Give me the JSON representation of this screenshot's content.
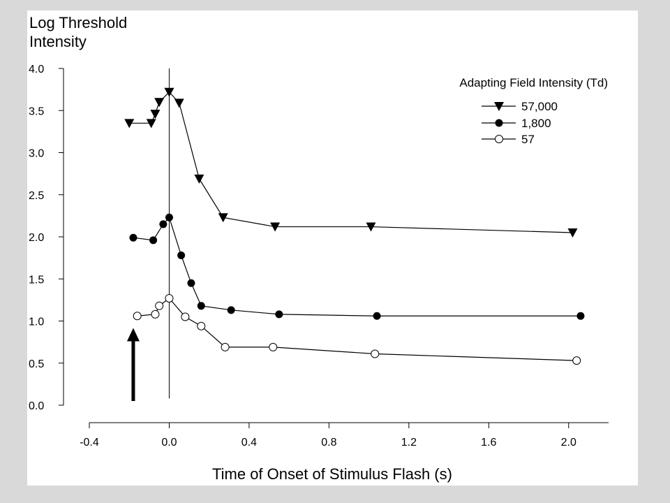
{
  "chart_data": {
    "type": "line",
    "ylabel_lines": [
      "Log Threshold",
      "Intensity"
    ],
    "xlabel": "Time of Onset of Stimulus Flash (s)",
    "xlim": [
      -0.4,
      2.2
    ],
    "ylim": [
      0.0,
      4.0
    ],
    "x_ticks": [
      "-0.4",
      "0.0",
      "0.4",
      "0.8",
      "1.2",
      "1.6",
      "2.0"
    ],
    "x_tick_values": [
      -0.4,
      0.0,
      0.4,
      0.8,
      1.2,
      1.6,
      2.0
    ],
    "y_ticks": [
      "0.0",
      "0.5",
      "1.0",
      "1.5",
      "2.0",
      "2.5",
      "3.0",
      "3.5",
      "4.0"
    ],
    "y_tick_values": [
      0.0,
      0.5,
      1.0,
      1.5,
      2.0,
      2.5,
      3.0,
      3.5,
      4.0
    ],
    "legend_title": "Adapting Field Intensity (Td)",
    "legend_placement": "top-right",
    "grid": false,
    "vertical_line_x": 0.0,
    "arrow": {
      "x": -0.18,
      "y_start": 0.05,
      "y_end": 0.9
    },
    "series": [
      {
        "name": "57,000",
        "marker": "triangle-down",
        "x": [
          -0.2,
          -0.09,
          -0.07,
          -0.05,
          0.0,
          0.05,
          0.15,
          0.27,
          0.53,
          1.01,
          2.02
        ],
        "y": [
          3.35,
          3.35,
          3.46,
          3.6,
          3.72,
          3.59,
          2.69,
          2.23,
          2.12,
          2.12,
          2.05
        ]
      },
      {
        "name": "1,800",
        "marker": "filled-circle",
        "x": [
          -0.18,
          -0.08,
          -0.03,
          0.0,
          0.06,
          0.11,
          0.16,
          0.31,
          0.55,
          1.04,
          2.06
        ],
        "y": [
          1.99,
          1.96,
          2.15,
          2.23,
          1.78,
          1.45,
          1.18,
          1.13,
          1.08,
          1.06,
          1.06
        ]
      },
      {
        "name": "57",
        "marker": "open-circle",
        "x": [
          -0.16,
          -0.07,
          -0.05,
          0.0,
          0.08,
          0.16,
          0.28,
          0.52,
          1.03,
          2.04
        ],
        "y": [
          1.06,
          1.08,
          1.18,
          1.27,
          1.05,
          0.94,
          0.69,
          0.69,
          0.61,
          0.53
        ]
      }
    ]
  }
}
